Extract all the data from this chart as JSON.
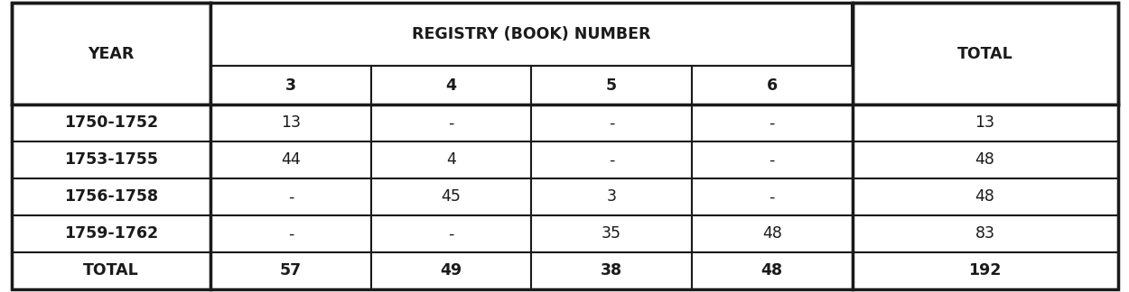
{
  "header_row1_labels": [
    "YEAR",
    "REGISTRY (BOOK) NUMBER",
    "TOTAL"
  ],
  "header_row2_labels": [
    "3",
    "4",
    "5",
    "6"
  ],
  "data_rows": [
    [
      "1750-1752",
      "13",
      "-",
      "-",
      "-",
      "13"
    ],
    [
      "1753-1755",
      "44",
      "4",
      "-",
      "-",
      "48"
    ],
    [
      "1756-1758",
      "-",
      "45",
      "3",
      "-",
      "48"
    ],
    [
      "1759-1762",
      "-",
      "-",
      "35",
      "48",
      "83"
    ],
    [
      "TOTAL",
      "57",
      "49",
      "38",
      "48",
      "192"
    ]
  ],
  "background_color": "#ffffff",
  "border_color": "#1a1a1a",
  "text_color": "#1a1a1a",
  "header_fontsize": 12.5,
  "data_fontsize": 12.5,
  "figure_width": 12.5,
  "figure_height": 3.24,
  "dpi": 100
}
